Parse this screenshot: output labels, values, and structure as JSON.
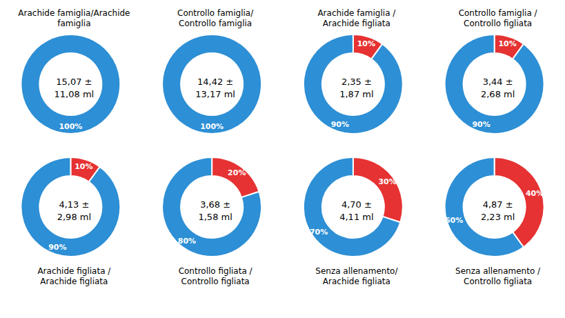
{
  "chart_data": [
    {
      "type": "pie",
      "title": "Arachide famiglia/Arachide\nfamiglia",
      "annotation": "15,07 ±\n11,08 ml",
      "values": [
        100
      ],
      "value_labels": [
        "100%"
      ],
      "colors": [
        "#2D8FD5"
      ],
      "data_labels": true
    },
    {
      "type": "pie",
      "title": "Controllo famiglia/\nControllo famiglia",
      "annotation": "14,42 ±\n13,17 ml",
      "values": [
        100
      ],
      "value_labels": [
        "100%"
      ],
      "colors": [
        "#2D8FD5"
      ],
      "data_labels": true
    },
    {
      "type": "pie",
      "title": "Arachide famiglia /\nArachide figliata",
      "annotation": "2,35 ±\n1,87 ml",
      "values": [
        10,
        90
      ],
      "value_labels": [
        "10%",
        "90%"
      ],
      "colors": [
        "#E63232",
        "#2D8FD5"
      ],
      "data_labels": true
    },
    {
      "type": "pie",
      "title": "Controllo famiglia /\nControllo figliata",
      "annotation": "3,44 ±\n2,68 ml",
      "values": [
        10,
        90
      ],
      "value_labels": [
        "10%",
        "90%"
      ],
      "colors": [
        "#E63232",
        "#2D8FD5"
      ],
      "data_labels": true
    },
    {
      "type": "pie",
      "title": "Arachide figliata /\nArachide figliata",
      "annotation": "4,13 ±\n2,98 ml",
      "values": [
        10,
        90
      ],
      "value_labels": [
        "10%",
        "90%"
      ],
      "colors": [
        "#E63232",
        "#2D8FD5"
      ],
      "data_labels": true
    },
    {
      "type": "pie",
      "title": "Controllo figliata /\nControllo figliata",
      "annotation": "3,68 ±\n1,58 ml",
      "values": [
        20,
        80
      ],
      "value_labels": [
        "20%",
        "80%"
      ],
      "colors": [
        "#E63232",
        "#2D8FD5"
      ],
      "data_labels": true
    },
    {
      "type": "pie",
      "title": "Senza allenamento/\nArachide figliata",
      "annotation": "4,70 ±\n4,11 ml",
      "values": [
        30,
        70
      ],
      "value_labels": [
        "30%",
        "70%"
      ],
      "colors": [
        "#E63232",
        "#2D8FD5"
      ],
      "data_labels": true
    },
    {
      "type": "pie",
      "title": "Senza allenamento /\nControllo figliata",
      "annotation": "4,87 ±\n2,23 ml",
      "values": [
        40,
        60
      ],
      "value_labels": [
        "40%",
        "60%"
      ],
      "colors": [
        "#E63232",
        "#2D8FD5"
      ],
      "data_labels": true
    }
  ]
}
